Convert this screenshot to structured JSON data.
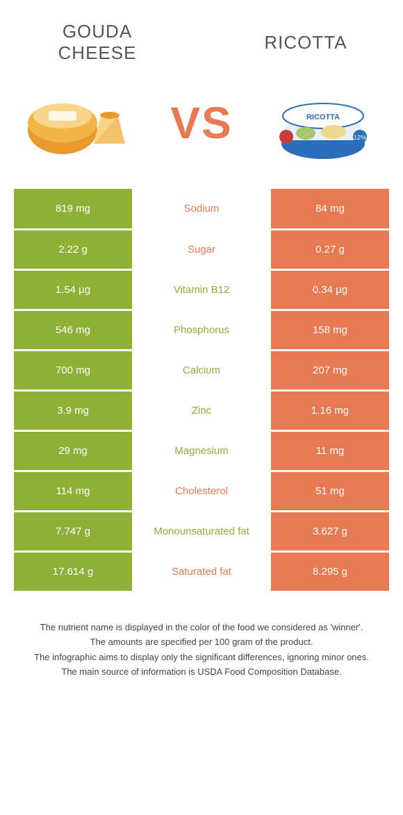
{
  "colors": {
    "left": "#8fb037",
    "right": "#e77a52",
    "nutrient_left_text": "#8fb037",
    "nutrient_right_text": "#e77a52"
  },
  "left_food": {
    "title": "GOUDA\nCHEESE"
  },
  "right_food": {
    "title": "RICOTTA"
  },
  "vs": "VS",
  "rows": [
    {
      "left": "819 mg",
      "nutrient": "Sodium",
      "right": "84 mg",
      "winner": "right"
    },
    {
      "left": "2.22 g",
      "nutrient": "Sugar",
      "right": "0.27 g",
      "winner": "right"
    },
    {
      "left": "1.54 µg",
      "nutrient": "Vitamin B12",
      "right": "0.34 µg",
      "winner": "left"
    },
    {
      "left": "546 mg",
      "nutrient": "Phosphorus",
      "right": "158 mg",
      "winner": "left"
    },
    {
      "left": "700 mg",
      "nutrient": "Calcium",
      "right": "207 mg",
      "winner": "left"
    },
    {
      "left": "3.9 mg",
      "nutrient": "Zinc",
      "right": "1.16 mg",
      "winner": "left"
    },
    {
      "left": "29 mg",
      "nutrient": "Magnesium",
      "right": "11 mg",
      "winner": "left"
    },
    {
      "left": "114 mg",
      "nutrient": "Cholesterol",
      "right": "51 mg",
      "winner": "right"
    },
    {
      "left": "7.747 g",
      "nutrient": "Monounsaturated fat",
      "right": "3.627 g",
      "winner": "left"
    },
    {
      "left": "17.614 g",
      "nutrient": "Saturated fat",
      "right": "8.295 g",
      "winner": "right"
    }
  ],
  "footnotes": [
    "The nutrient name is displayed in the color of the food we considered as 'winner'.",
    "The amounts are specified per 100 gram of the product.",
    "The infographic aims to display only the significant differences, ignoring minor ones.",
    "The main source of information is USDA Food Composition Database."
  ]
}
